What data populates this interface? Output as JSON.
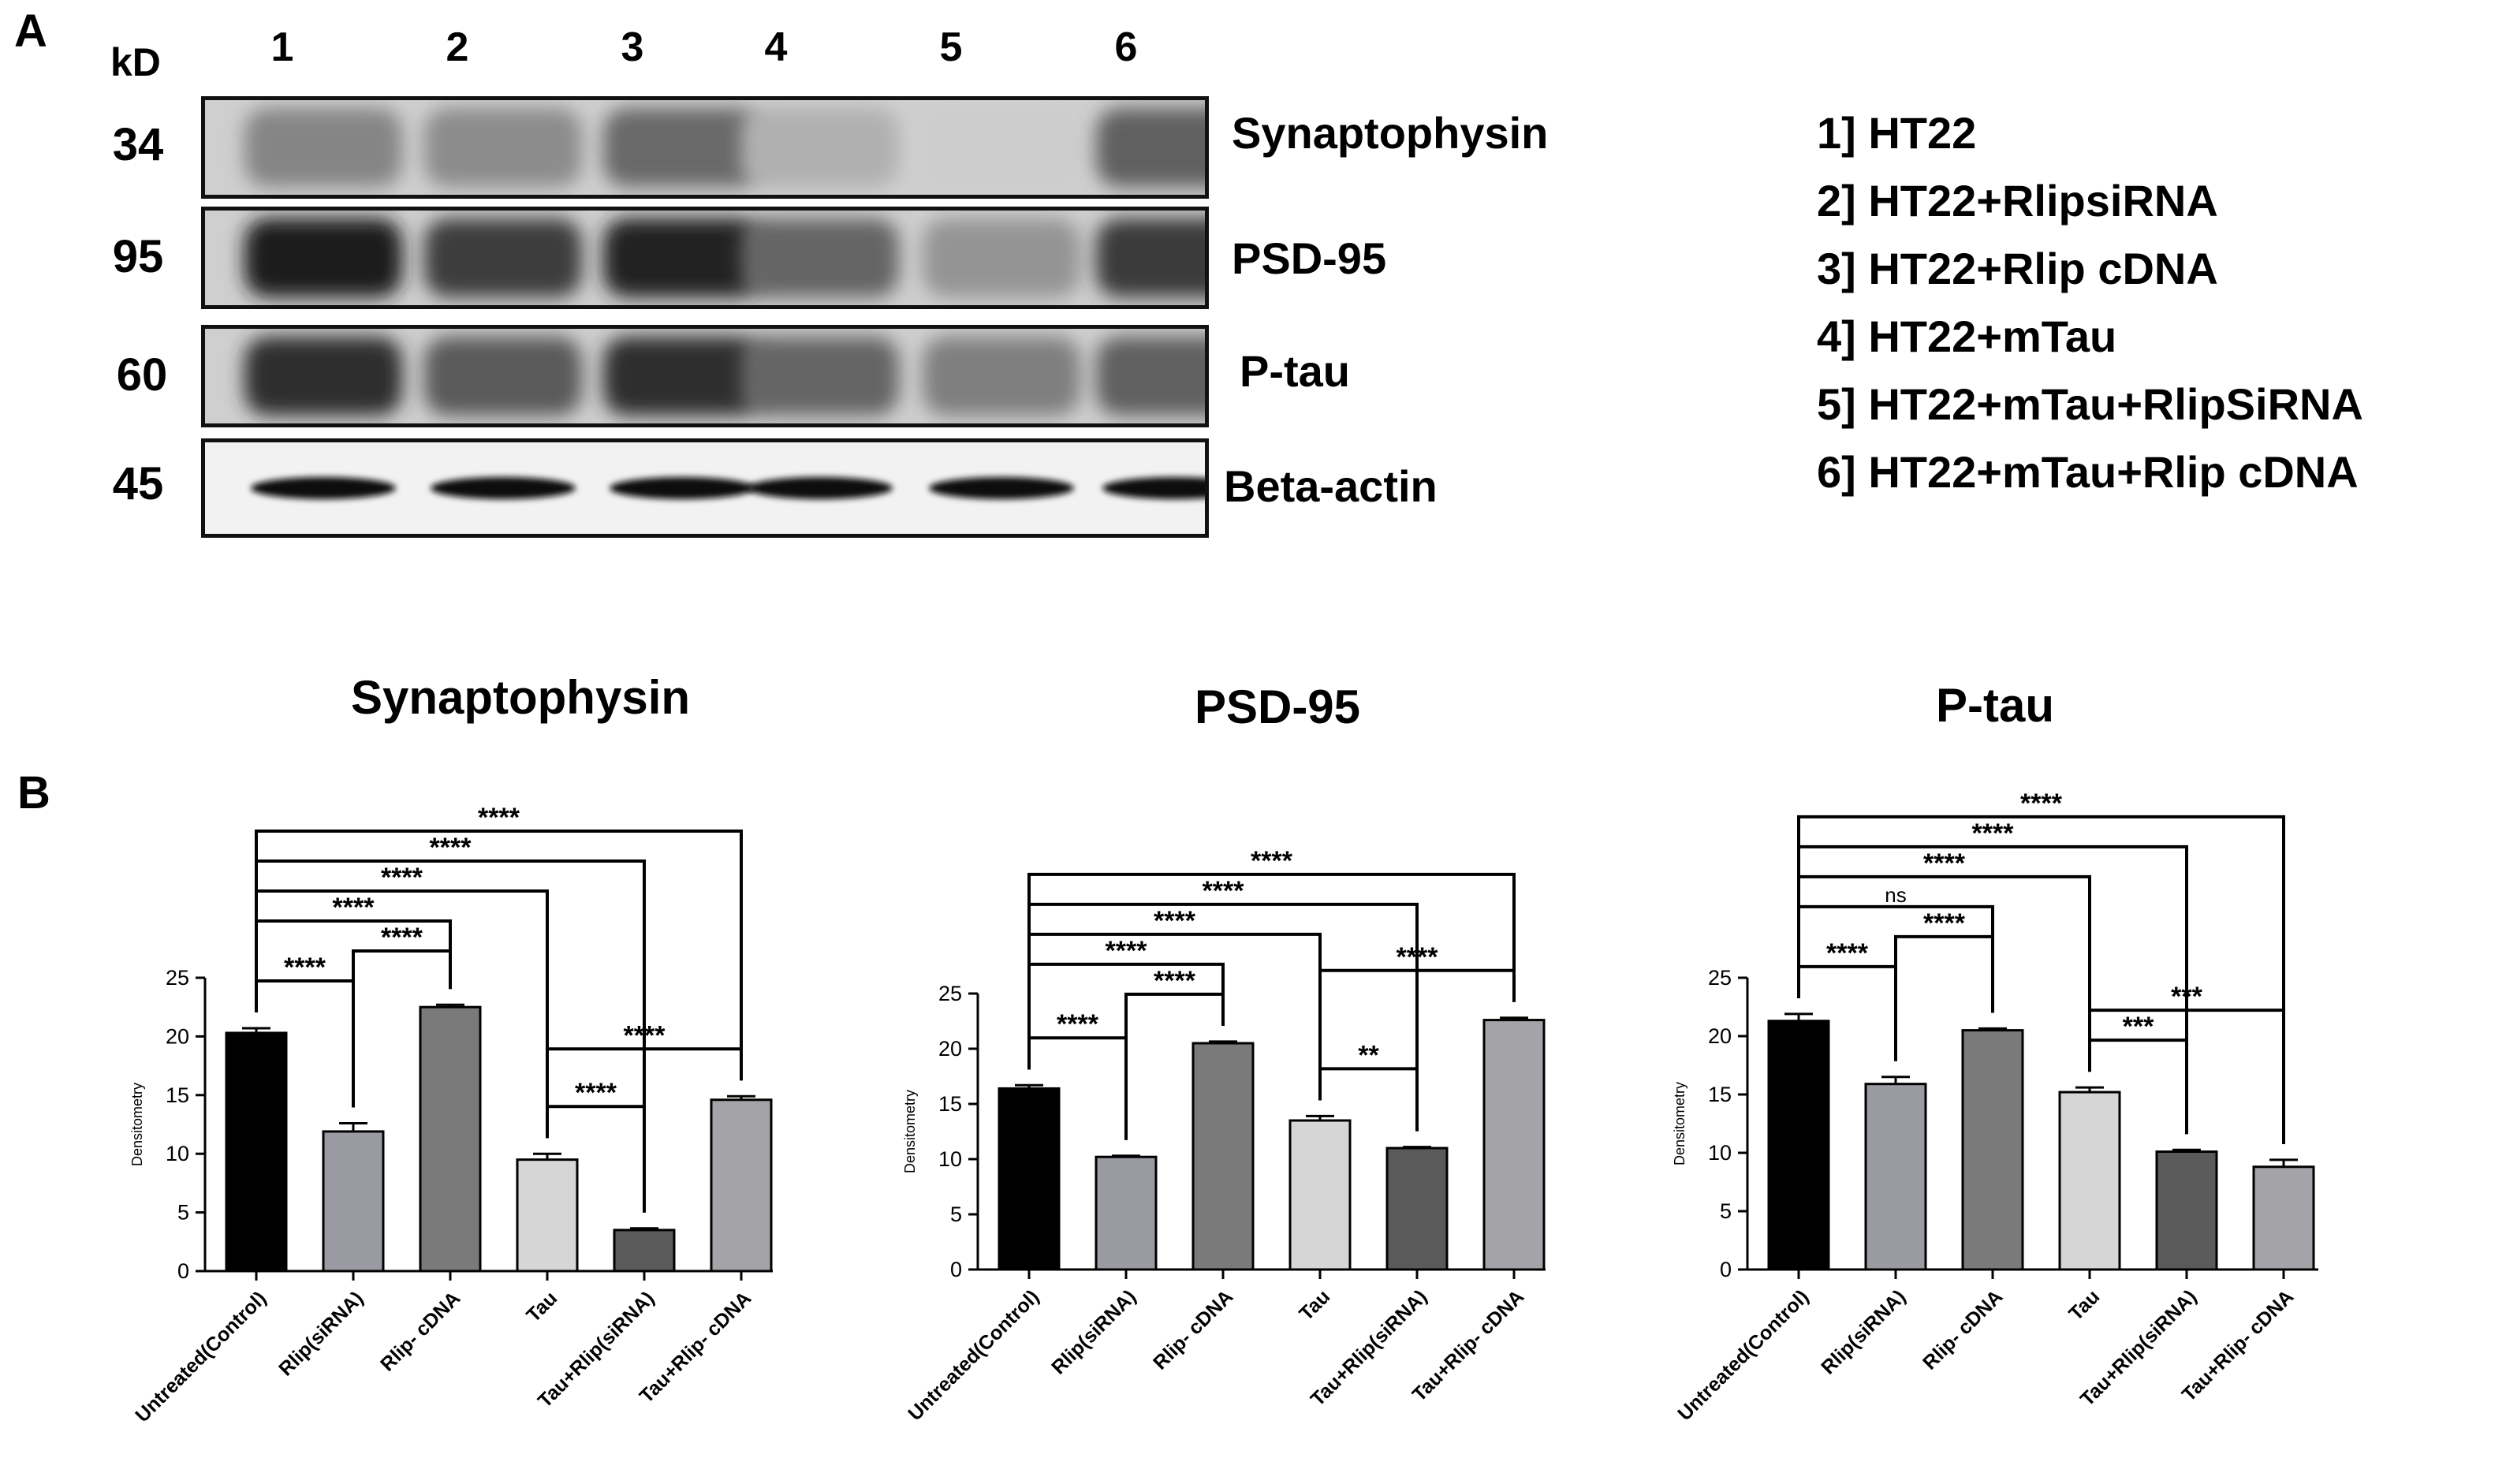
{
  "panel_a": {
    "letter": "A",
    "kd_label": "kD",
    "lanes": [
      "1",
      "2",
      "3",
      "4",
      "5",
      "6"
    ],
    "rows": [
      {
        "mw": "34",
        "protein": "Synaptophysin",
        "intensity": [
          0.45,
          0.42,
          0.58,
          0.25,
          0.12,
          0.62
        ]
      },
      {
        "mw": "95",
        "protein": "PSD-95",
        "intensity": [
          0.95,
          0.78,
          0.92,
          0.6,
          0.38,
          0.8
        ]
      },
      {
        "mw": "60",
        "protein": "P-tau",
        "intensity": [
          0.85,
          0.65,
          0.85,
          0.6,
          0.48,
          0.62
        ]
      },
      {
        "mw": "45",
        "protein": "Beta-actin",
        "intensity": [
          1,
          1,
          1,
          1,
          1,
          1
        ]
      }
    ],
    "legend": [
      "1] HT22",
      "2] HT22+RlipsiRNA",
      "3] HT22+Rlip cDNA",
      "4] HT22+mTau",
      "5] HT22+mTau+RlipSiRNA",
      "6] HT22+mTau+Rlip cDNA"
    ]
  },
  "panel_b": {
    "letter": "B",
    "bar_colors": [
      "#000000",
      "#9a9aa2",
      "#7a7a7a",
      "#d6d6d6",
      "#5a5a5a",
      "#a3a3a8"
    ]
  },
  "chart_data": [
    {
      "type": "bar",
      "title": "Synaptophysin",
      "ylabel": "Densitometry",
      "xlabel": "",
      "ylim": [
        0,
        25
      ],
      "yticks": [
        "0",
        "5",
        "10",
        "15",
        "20",
        "25"
      ],
      "categories": [
        "Untreated(Control)",
        "Rlip(siRNA)",
        "Rlip- cDNA",
        "Tau",
        "Tau+Rlip(siRNA)",
        "Tau+Rlip- cDNA"
      ],
      "values": [
        20.3,
        11.9,
        22.5,
        9.5,
        3.5,
        14.6
      ],
      "errors": [
        0.4,
        0.7,
        0.2,
        0.5,
        0.15,
        0.3
      ],
      "comparisons": [
        {
          "from": 0,
          "to": 1,
          "label": "****"
        },
        {
          "from": 1,
          "to": 2,
          "label": "****"
        },
        {
          "from": 0,
          "to": 2,
          "label": "****"
        },
        {
          "from": 3,
          "to": 4,
          "label": "****"
        },
        {
          "from": 0,
          "to": 3,
          "label": "****"
        },
        {
          "from": 0,
          "to": 4,
          "label": "****"
        },
        {
          "from": 0,
          "to": 5,
          "label": "****"
        },
        {
          "from": 3,
          "to": 5,
          "label": "****"
        }
      ]
    },
    {
      "type": "bar",
      "title": "PSD-95",
      "ylabel": "Densitometry",
      "xlabel": "",
      "ylim": [
        0,
        25
      ],
      "yticks": [
        "0",
        "5",
        "10",
        "15",
        "20",
        "25"
      ],
      "categories": [
        "Untreated(Control)",
        "Rlip(siRNA)",
        "Rlip- cDNA",
        "Tau",
        "Tau+Rlip(siRNA)",
        "Tau+Rlip- cDNA"
      ],
      "values": [
        16.4,
        10.2,
        20.5,
        13.5,
        11.0,
        22.6
      ],
      "errors": [
        0.3,
        0.1,
        0.15,
        0.4,
        0.1,
        0.2
      ],
      "comparisons": [
        {
          "from": 0,
          "to": 1,
          "label": "****"
        },
        {
          "from": 1,
          "to": 2,
          "label": "****"
        },
        {
          "from": 3,
          "to": 4,
          "label": "**"
        },
        {
          "from": 0,
          "to": 2,
          "label": "****"
        },
        {
          "from": 0,
          "to": 3,
          "label": "****"
        },
        {
          "from": 0,
          "to": 4,
          "label": "****"
        },
        {
          "from": 0,
          "to": 5,
          "label": "****"
        },
        {
          "from": 3,
          "to": 5,
          "label": "****"
        }
      ]
    },
    {
      "type": "bar",
      "title": "P-tau",
      "ylabel": "Densitometry",
      "xlabel": "",
      "ylim": [
        0,
        25
      ],
      "yticks": [
        "0",
        "5",
        "10",
        "15",
        "20",
        "25"
      ],
      "categories": [
        "Untreated(Control)",
        "Rlip(siRNA)",
        "Rlip- cDNA",
        "Tau",
        "Tau+Rlip(siRNA)",
        "Tau+Rlip- cDNA"
      ],
      "values": [
        21.3,
        15.9,
        20.5,
        15.2,
        10.1,
        8.8
      ],
      "errors": [
        0.6,
        0.6,
        0.15,
        0.4,
        0.15,
        0.6
      ],
      "comparisons": [
        {
          "from": 0,
          "to": 1,
          "label": "****"
        },
        {
          "from": 1,
          "to": 2,
          "label": "****"
        },
        {
          "from": 3,
          "to": 4,
          "label": "***"
        },
        {
          "from": 0,
          "to": 2,
          "label": "ns"
        },
        {
          "from": 0,
          "to": 3,
          "label": "****"
        },
        {
          "from": 0,
          "to": 4,
          "label": "****"
        },
        {
          "from": 0,
          "to": 5,
          "label": "****"
        },
        {
          "from": 3,
          "to": 5,
          "label": "***"
        }
      ]
    }
  ]
}
